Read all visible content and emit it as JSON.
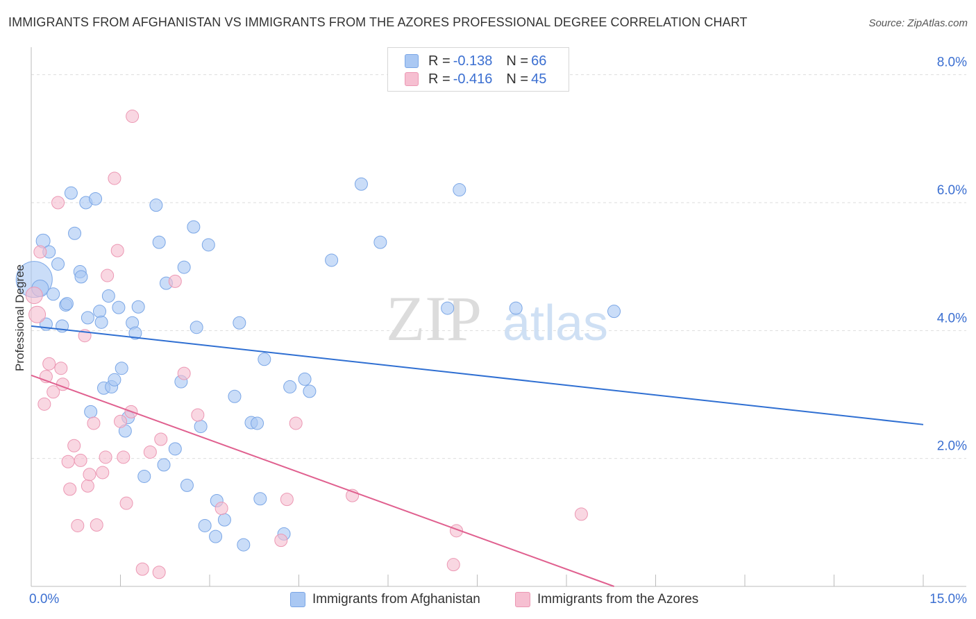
{
  "header": {
    "title": "IMMIGRANTS FROM AFGHANISTAN VS IMMIGRANTS FROM THE AZORES PROFESSIONAL DEGREE CORRELATION CHART",
    "source": "Source: ZipAtlas.com"
  },
  "watermark": {
    "zip": "ZIP",
    "atlas": "atlas"
  },
  "legend": {
    "r_label": "R =",
    "n_label": "N =",
    "series1": {
      "r": "-0.138",
      "n": "66"
    },
    "series2": {
      "r": "-0.416",
      "n": "45"
    }
  },
  "bottom_legend": {
    "series1": "Immigrants from Afghanistan",
    "series2": "Immigrants from the Azores"
  },
  "colors": {
    "blue_fill": "#aac8f3",
    "blue_stroke": "#7aa6e6",
    "blue_line": "#2f6fd2",
    "pink_fill": "#f6bfd1",
    "pink_stroke": "#ec97b3",
    "pink_line": "#e0608f",
    "tick_label": "#3b6fd1",
    "grid": "#dddddd"
  },
  "chart_data": {
    "type": "scatter",
    "title": "IMMIGRANTS FROM AFGHANISTAN VS IMMIGRANTS FROM THE AZORES PROFESSIONAL DEGREE CORRELATION CHART",
    "xlabel": "",
    "ylabel": "Professional Degree",
    "xlim": [
      0,
      15
    ],
    "ylim": [
      0,
      8.3
    ],
    "x_tick_labels": [
      "0.0%",
      "15.0%"
    ],
    "y_ticks": [
      2,
      4,
      6,
      8
    ],
    "y_tick_labels": [
      "2.0%",
      "4.0%",
      "6.0%",
      "8.0%"
    ],
    "grid": true,
    "legend_position": "top-center",
    "series": [
      {
        "name": "Immigrants from Afghanistan",
        "color": "#aac8f3",
        "trend": {
          "x": [
            0,
            15
          ],
          "y": [
            4.07,
            2.53
          ]
        },
        "points": [
          [
            0.05,
            4.8,
            26
          ],
          [
            0.15,
            4.66,
            12
          ],
          [
            0.2,
            5.4,
            10
          ],
          [
            0.25,
            4.1,
            9
          ],
          [
            0.3,
            5.23,
            9
          ],
          [
            0.37,
            4.57,
            9
          ],
          [
            0.45,
            5.04,
            9
          ],
          [
            0.52,
            4.07,
            9
          ],
          [
            0.58,
            4.4,
            9
          ],
          [
            0.6,
            4.42,
            9
          ],
          [
            0.67,
            6.15,
            9
          ],
          [
            0.73,
            5.52,
            9
          ],
          [
            0.82,
            4.92,
            9
          ],
          [
            0.84,
            4.84,
            9
          ],
          [
            0.92,
            6.0,
            9
          ],
          [
            0.95,
            4.2,
            9
          ],
          [
            1.0,
            2.73,
            9
          ],
          [
            1.08,
            6.06,
            9
          ],
          [
            1.15,
            4.3,
            9
          ],
          [
            1.18,
            4.13,
            9
          ],
          [
            1.22,
            3.1,
            9
          ],
          [
            1.3,
            4.54,
            9
          ],
          [
            1.35,
            3.12,
            9
          ],
          [
            1.4,
            3.23,
            9
          ],
          [
            1.47,
            4.36,
            9
          ],
          [
            1.52,
            3.41,
            9
          ],
          [
            1.58,
            2.43,
            9
          ],
          [
            1.63,
            2.64,
            9
          ],
          [
            1.7,
            4.12,
            9
          ],
          [
            1.75,
            3.96,
            9
          ],
          [
            1.8,
            4.37,
            9
          ],
          [
            1.9,
            1.72,
            9
          ],
          [
            2.1,
            5.96,
            9
          ],
          [
            2.15,
            5.38,
            9
          ],
          [
            2.23,
            1.9,
            9
          ],
          [
            2.27,
            4.74,
            9
          ],
          [
            2.42,
            2.15,
            9
          ],
          [
            2.52,
            3.2,
            9
          ],
          [
            2.57,
            4.99,
            9
          ],
          [
            2.62,
            1.58,
            9
          ],
          [
            2.73,
            5.62,
            9
          ],
          [
            2.78,
            4.05,
            9
          ],
          [
            2.85,
            2.5,
            9
          ],
          [
            2.92,
            0.95,
            9
          ],
          [
            2.98,
            5.34,
            9
          ],
          [
            3.1,
            0.78,
            9
          ],
          [
            3.12,
            1.34,
            9
          ],
          [
            3.25,
            1.04,
            9
          ],
          [
            3.42,
            2.97,
            9
          ],
          [
            3.5,
            4.12,
            9
          ],
          [
            3.57,
            0.65,
            9
          ],
          [
            3.7,
            2.56,
            9
          ],
          [
            3.8,
            2.55,
            9
          ],
          [
            3.85,
            1.37,
            9
          ],
          [
            3.92,
            3.55,
            9
          ],
          [
            4.25,
            0.82,
            9
          ],
          [
            4.35,
            3.12,
            9
          ],
          [
            4.6,
            3.24,
            9
          ],
          [
            4.68,
            3.05,
            9
          ],
          [
            5.05,
            5.1,
            9
          ],
          [
            5.55,
            6.29,
            9
          ],
          [
            5.87,
            5.38,
            9
          ],
          [
            7.0,
            4.35,
            9
          ],
          [
            7.2,
            6.2,
            9
          ],
          [
            8.15,
            4.35,
            9
          ],
          [
            9.8,
            4.3,
            9
          ]
        ]
      },
      {
        "name": "Immigrants from the Azores",
        "color": "#f6bfd1",
        "trend": {
          "x": [
            0,
            9.8
          ],
          "y": [
            3.3,
            0.0
          ]
        },
        "points": [
          [
            0.05,
            4.55,
            12
          ],
          [
            0.1,
            4.25,
            12
          ],
          [
            0.15,
            5.23,
            9
          ],
          [
            0.22,
            2.85,
            9
          ],
          [
            0.25,
            3.28,
            9
          ],
          [
            0.3,
            3.48,
            9
          ],
          [
            0.37,
            3.04,
            9
          ],
          [
            0.45,
            6.0,
            9
          ],
          [
            0.5,
            3.41,
            9
          ],
          [
            0.53,
            3.16,
            9
          ],
          [
            0.62,
            1.95,
            9
          ],
          [
            0.65,
            1.52,
            9
          ],
          [
            0.72,
            2.2,
            9
          ],
          [
            0.78,
            0.95,
            9
          ],
          [
            0.83,
            1.97,
            9
          ],
          [
            0.9,
            3.92,
            9
          ],
          [
            0.95,
            1.57,
            9
          ],
          [
            0.98,
            1.75,
            9
          ],
          [
            1.05,
            2.55,
            9
          ],
          [
            1.1,
            0.96,
            9
          ],
          [
            1.2,
            1.78,
            9
          ],
          [
            1.25,
            2.02,
            9
          ],
          [
            1.28,
            4.86,
            9
          ],
          [
            1.4,
            6.38,
            9
          ],
          [
            1.45,
            5.25,
            9
          ],
          [
            1.5,
            2.58,
            9
          ],
          [
            1.55,
            2.02,
            9
          ],
          [
            1.6,
            1.3,
            9
          ],
          [
            1.68,
            2.73,
            9
          ],
          [
            1.7,
            7.35,
            9
          ],
          [
            1.87,
            0.27,
            9
          ],
          [
            2.0,
            2.1,
            9
          ],
          [
            2.15,
            0.22,
            9
          ],
          [
            2.18,
            2.3,
            9
          ],
          [
            2.42,
            4.77,
            9
          ],
          [
            2.57,
            3.33,
            9
          ],
          [
            2.8,
            2.68,
            9
          ],
          [
            3.2,
            1.22,
            9
          ],
          [
            4.2,
            0.72,
            9
          ],
          [
            4.3,
            1.36,
            9
          ],
          [
            4.45,
            2.55,
            9
          ],
          [
            5.4,
            1.42,
            9
          ],
          [
            7.1,
            0.34,
            9
          ],
          [
            7.15,
            0.87,
            9
          ],
          [
            9.25,
            1.13,
            9
          ]
        ]
      }
    ]
  }
}
